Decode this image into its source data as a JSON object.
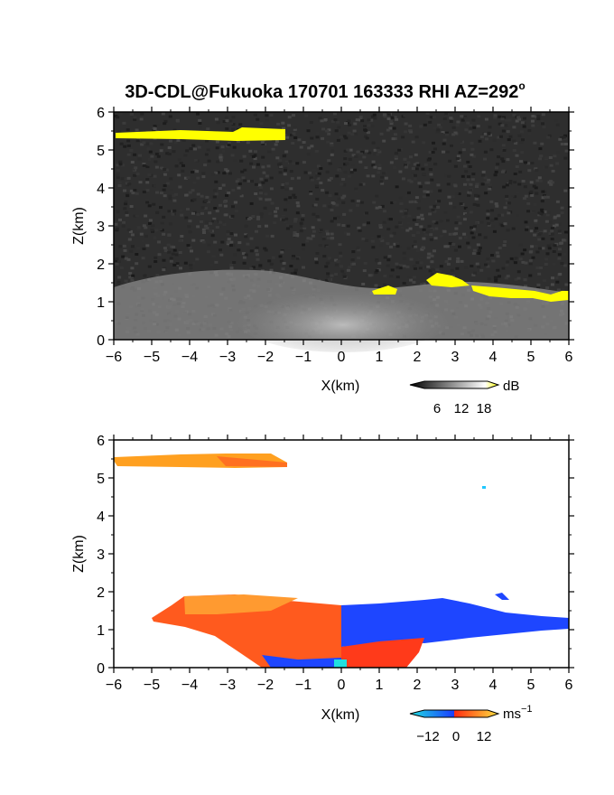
{
  "figure": {
    "title_main": "3D-CDL@Fukuoka 170701 163333 RHI AZ=292",
    "title_sup": "o"
  },
  "chart_data": [
    {
      "type": "heatmap",
      "name": "reflectivity",
      "xlabel": "X(km)",
      "ylabel": "Z(km)",
      "xlim": [
        -6,
        6
      ],
      "ylim": [
        0,
        6
      ],
      "xticks": [
        -6,
        -5,
        -4,
        -3,
        -2,
        -1,
        0,
        1,
        2,
        3,
        4,
        5,
        6
      ],
      "yticks": [
        0,
        1,
        2,
        3,
        4,
        5,
        6
      ],
      "colorbar": {
        "unit": "dB",
        "ticks": [
          6,
          12,
          18
        ]
      },
      "background": "noise-gray",
      "colors": {
        "noise": "#3a3a3a",
        "signal": "#d8d8d8",
        "strong": "#ffff00"
      },
      "regions": [
        {
          "kind": "strong",
          "x": [
            -6,
            -1.5
          ],
          "z": [
            5.3,
            5.5
          ]
        },
        {
          "kind": "strong",
          "x": [
            0.8,
            1.5
          ],
          "z": [
            1.2,
            1.4
          ]
        },
        {
          "kind": "strong",
          "x": [
            2.3,
            3.2
          ],
          "z": [
            1.4,
            1.7
          ]
        },
        {
          "kind": "strong",
          "x": [
            3.5,
            6
          ],
          "z": [
            1.1,
            1.4
          ]
        },
        {
          "kind": "signal",
          "x": [
            -6,
            6
          ],
          "z": [
            0,
            1.7
          ]
        }
      ]
    },
    {
      "type": "heatmap",
      "name": "doppler-velocity",
      "xlabel": "X(km)",
      "ylabel": "Z(km)",
      "xlim": [
        -6,
        6
      ],
      "ylim": [
        0,
        6
      ],
      "xticks": [
        -6,
        -5,
        -4,
        -3,
        -2,
        -1,
        0,
        1,
        2,
        3,
        4,
        5,
        6
      ],
      "yticks": [
        0,
        1,
        2,
        3,
        4,
        5,
        6
      ],
      "colorbar": {
        "unit": "ms",
        "unit_sup": "−1",
        "ticks": [
          "−12",
          "0",
          "12"
        ]
      },
      "colors": {
        "positive": "#ff4a1a",
        "positive_high": "#ffa020",
        "negative": "#1a46ff",
        "negative_low": "#20c8ff"
      },
      "regions": [
        {
          "kind": "positive_high",
          "x": [
            -6,
            -1.5
          ],
          "z": [
            5.3,
            5.6
          ]
        },
        {
          "kind": "positive",
          "x": [
            -4.8,
            0
          ],
          "z": [
            0,
            1.8
          ]
        },
        {
          "kind": "negative",
          "x": [
            0,
            6
          ],
          "z": [
            0.7,
            1.8
          ]
        },
        {
          "kind": "positive",
          "x": [
            0,
            2.2
          ],
          "z": [
            0,
            0.8
          ]
        }
      ]
    }
  ]
}
